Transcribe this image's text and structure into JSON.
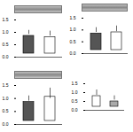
{
  "chart_data": [
    {
      "type": "bar",
      "categories": [
        null,
        null
      ],
      "values": [
        1.0,
        0.95
      ],
      "errors": [
        0.08,
        0.1
      ],
      "colors": [
        "#555555",
        "#ffffff"
      ],
      "ylim": [
        0,
        1.5
      ],
      "yticks": [
        0,
        0.5,
        1,
        1.5
      ],
      "tick_labels": "y"
    },
    {
      "type": "bar",
      "categories": [
        null,
        null
      ],
      "values": [
        1.0,
        1.05
      ],
      "errors": [
        0.1,
        0.12
      ],
      "colors": [
        "#555555",
        "#ffffff"
      ],
      "ylim": [
        0,
        1.5
      ],
      "yticks": [
        0,
        0.5,
        1,
        1.5
      ],
      "tick_labels": "y"
    },
    {
      "type": "bar",
      "categories": [
        null,
        null
      ],
      "values": [
        1.0,
        1.2
      ],
      "errors": [
        0.1,
        0.2
      ],
      "colors": [
        "#555555",
        "#ffffff"
      ],
      "ylim": [
        0,
        1.5
      ],
      "yticks": [
        0,
        0.5,
        1,
        1.5
      ],
      "tick_labels": "y"
    },
    {
      "type": "bar",
      "categories": [
        null,
        null
      ],
      "values": [
        1.0,
        0.7
      ],
      "errors": [
        0.15,
        0.12
      ],
      "colors": [
        "#ffffff",
        "#aaaaaa"
      ],
      "ylim": [
        0,
        1.5
      ],
      "yticks": [
        0,
        0.5,
        1,
        1.5
      ],
      "tick_labels": "y"
    }
  ]
}
